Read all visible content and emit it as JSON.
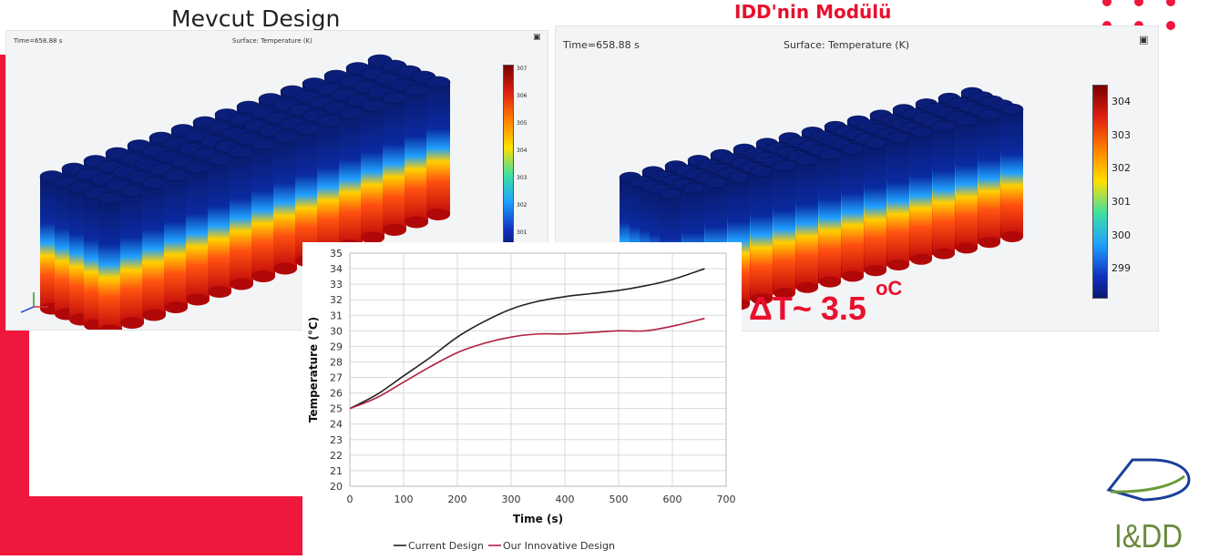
{
  "slide": {
    "left_title": "Mevcut Design",
    "right_title": "IDD'nin Modülü",
    "delta_label": "ΔT~ 3.5 ",
    "delta_unit": "oC",
    "accent_color": "#f0173c",
    "logo_text": "I&DD"
  },
  "left_panel": {
    "time_label": "Time=658.88 s",
    "surface_label": "Surface: Temperature (K)",
    "colorbar_ticks": [
      "307",
      "306",
      "305",
      "304",
      "303",
      "302",
      "301"
    ]
  },
  "right_panel": {
    "time_label": "Time=658.88 s",
    "surface_label": "Surface: Temperature (K)",
    "colorbar_ticks": [
      "304",
      "303",
      "302",
      "301",
      "300",
      "299"
    ]
  },
  "chart_data": {
    "type": "line",
    "xlabel": "Time (s)",
    "ylabel": "Temperature (°C)",
    "xlim": [
      0,
      700
    ],
    "ylim": [
      20,
      35
    ],
    "x_ticks": [
      0,
      100,
      200,
      300,
      400,
      500,
      600,
      700
    ],
    "y_ticks": [
      20,
      21,
      22,
      23,
      24,
      25,
      26,
      27,
      28,
      29,
      30,
      31,
      32,
      33,
      34,
      35
    ],
    "grid": true,
    "legend_position": "bottom",
    "series": [
      {
        "name": "Current Design",
        "color": "#222222",
        "x": [
          0,
          50,
          100,
          150,
          200,
          250,
          300,
          350,
          400,
          450,
          500,
          550,
          600,
          660
        ],
        "y": [
          25.0,
          25.9,
          27.1,
          28.3,
          29.6,
          30.6,
          31.4,
          31.9,
          32.2,
          32.4,
          32.6,
          32.9,
          33.3,
          34.0
        ]
      },
      {
        "name": "Our Innovative Design",
        "color": "#b02040",
        "x": [
          0,
          50,
          100,
          150,
          200,
          250,
          300,
          350,
          400,
          450,
          500,
          550,
          600,
          660
        ],
        "y": [
          25.0,
          25.7,
          26.7,
          27.7,
          28.6,
          29.2,
          29.6,
          29.8,
          29.8,
          29.9,
          30.0,
          30.0,
          30.3,
          30.8
        ]
      }
    ]
  }
}
